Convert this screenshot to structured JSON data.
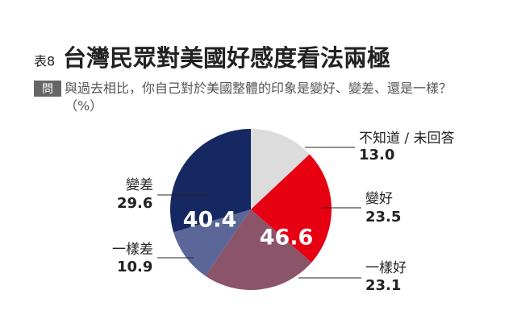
{
  "chart_data": {
    "type": "pie",
    "table_label": "表8",
    "title": "台灣民眾對美國好感度看法兩極",
    "question_tag": "問",
    "subtitle": "與過去相比，你自己對於美國整體的印象是變好、變差、還是一樣？（%）",
    "categories": [
      "不知道 / 未回答",
      "變好",
      "一樣好",
      "一樣差",
      "變差"
    ],
    "values": [
      13.0,
      23.5,
      23.1,
      10.9,
      29.6
    ],
    "value_labels": [
      "13.0",
      "23.5",
      "23.1",
      "10.9",
      "29.6"
    ],
    "colors": [
      "#dcdcdc",
      "#e60012",
      "#8b5468",
      "#5b6798",
      "#152861"
    ],
    "annotations": [
      "46.6",
      "40.4"
    ]
  }
}
